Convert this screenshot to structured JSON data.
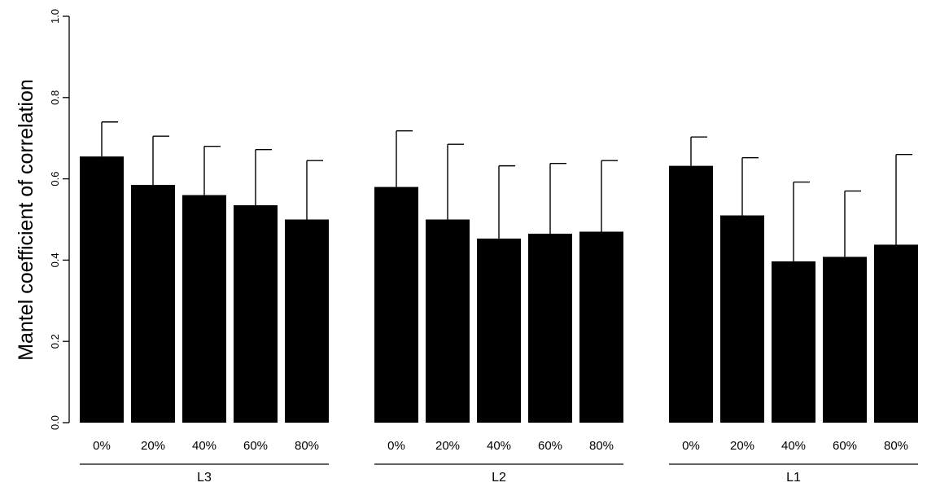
{
  "chart_data": {
    "type": "bar",
    "title": "",
    "xlabel": "",
    "ylabel": "Mantel coefficient of correlation",
    "ylim": [
      0,
      1
    ],
    "yticks": [
      "0.0",
      "0.2",
      "0.4",
      "0.6",
      "0.8",
      "1.0"
    ],
    "grid": false,
    "legend": "none",
    "bar_color": "#000000",
    "groups": [
      {
        "name": "L3",
        "categories": [
          "0%",
          "20%",
          "40%",
          "60%",
          "80%"
        ],
        "values": [
          0.655,
          0.585,
          0.56,
          0.535,
          0.5
        ],
        "error_upper": [
          0.74,
          0.705,
          0.68,
          0.672,
          0.645
        ]
      },
      {
        "name": "L2",
        "categories": [
          "0%",
          "20%",
          "40%",
          "60%",
          "80%"
        ],
        "values": [
          0.58,
          0.5,
          0.453,
          0.465,
          0.47
        ],
        "error_upper": [
          0.718,
          0.685,
          0.632,
          0.638,
          0.645
        ]
      },
      {
        "name": "L1",
        "categories": [
          "0%",
          "20%",
          "40%",
          "60%",
          "80%"
        ],
        "values": [
          0.632,
          0.51,
          0.397,
          0.408,
          0.438
        ],
        "error_upper": [
          0.703,
          0.652,
          0.592,
          0.57,
          0.66
        ]
      }
    ]
  }
}
